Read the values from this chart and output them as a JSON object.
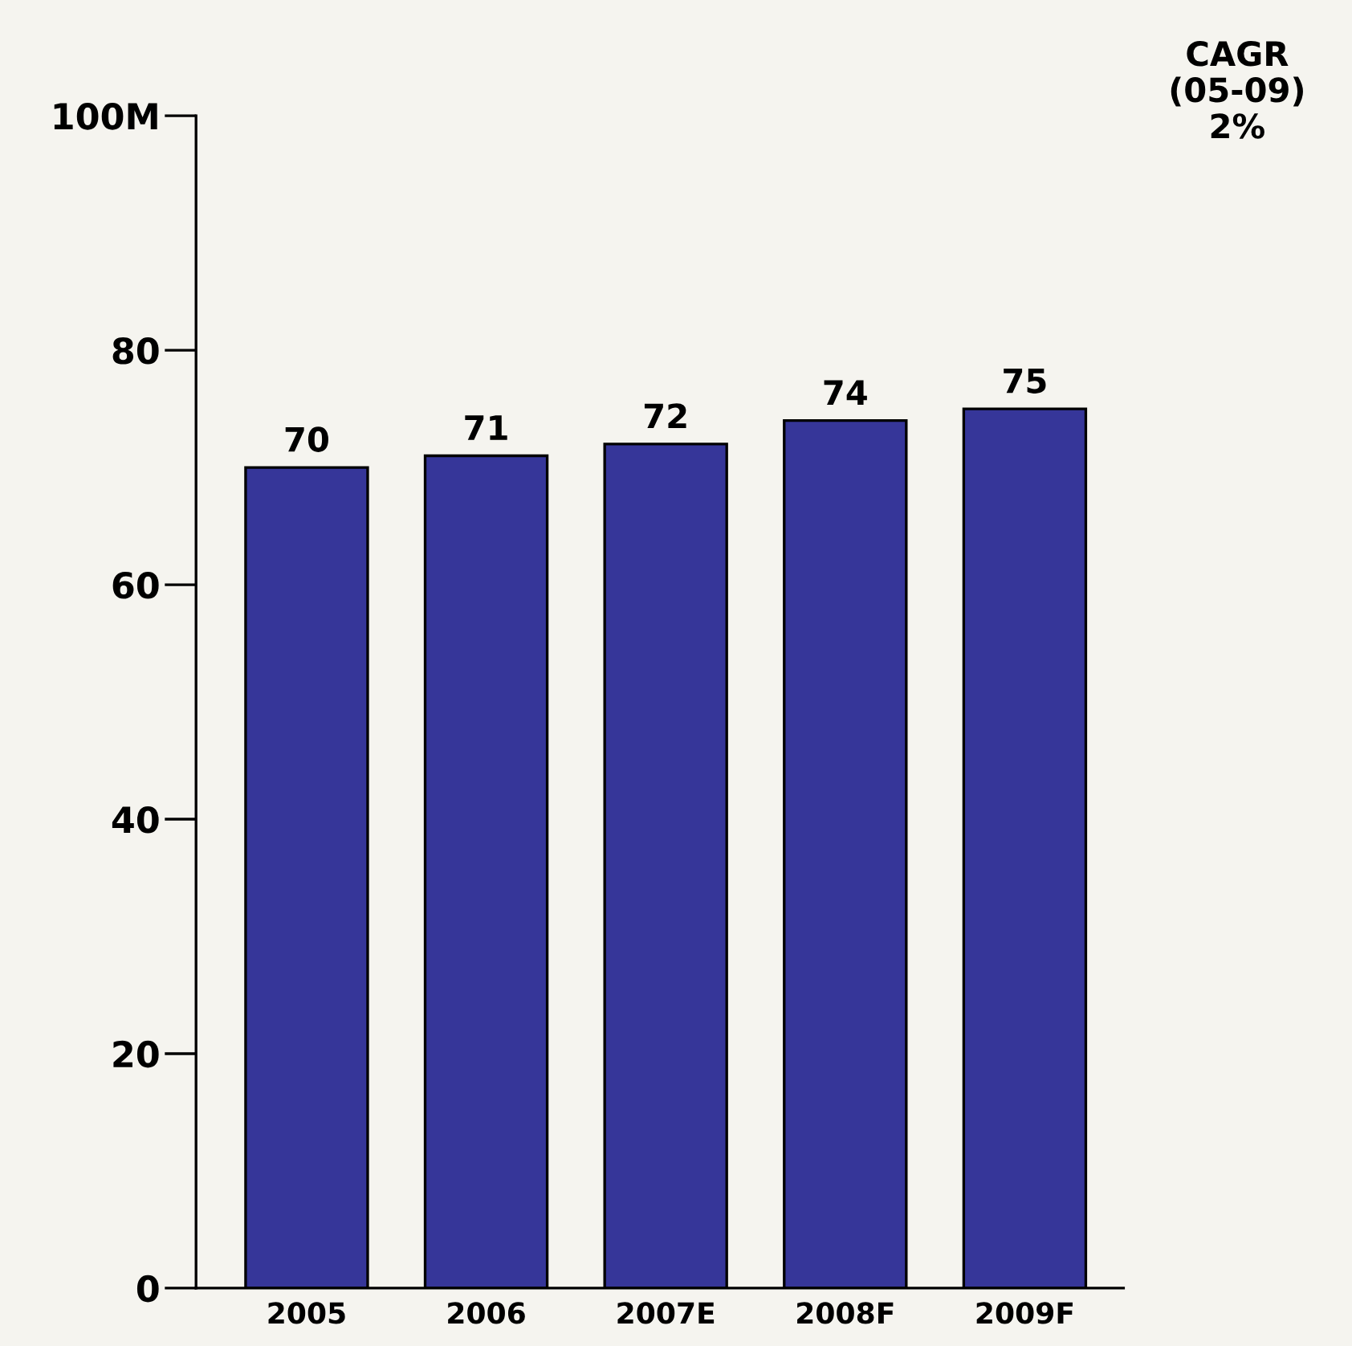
{
  "chart_data": {
    "type": "bar",
    "categories": [
      "2005",
      "2006",
      "2007E",
      "2008F",
      "2009F"
    ],
    "values": [
      70,
      71,
      72,
      74,
      75
    ],
    "color": "#363699",
    "ylim": [
      0,
      100
    ],
    "yticks": [
      0,
      20,
      40,
      60,
      80,
      {
        "value": 100,
        "label": "100M"
      }
    ],
    "data_labels": true,
    "grid": false,
    "annotations": [
      "CAGR\n(05-09)\n2%"
    ]
  }
}
